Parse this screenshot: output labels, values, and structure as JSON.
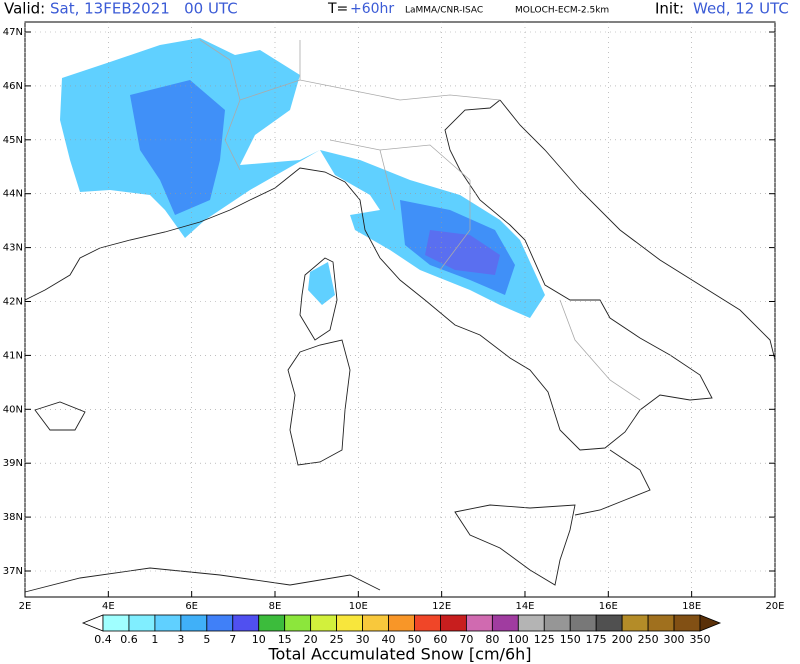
{
  "header": {
    "valid_label": "Valid:",
    "valid_time": "Sat, 13FEB2021   00 UTC",
    "lead_label": "T=",
    "lead_time": "+60hr",
    "source": "LaMMA/CNR-ISAC",
    "model": "MOLOCH-ECM-2.5km",
    "init_label": "Init:",
    "init_time": "Wed, 12 UTC"
  },
  "map": {
    "lat_labels": [
      "47N",
      "46N",
      "45N",
      "44N",
      "43N",
      "42N",
      "41N",
      "40N",
      "39N",
      "38N",
      "37N"
    ],
    "lon_labels": [
      "2E",
      "4E",
      "6E",
      "8E",
      "10E",
      "12E",
      "14E",
      "16E",
      "18E",
      "20E"
    ]
  },
  "colorbar": {
    "title": "Total Accumulated Snow [cm/6h]",
    "labels": [
      "0.4",
      "0.6",
      "1",
      "3",
      "5",
      "7",
      "10",
      "15",
      "20",
      "25",
      "30",
      "40",
      "50",
      "60",
      "70",
      "80",
      "100",
      "125",
      "150",
      "175",
      "200",
      "250",
      "300",
      "350"
    ],
    "colors": [
      "#ffffff",
      "#a0ffff",
      "#80eeff",
      "#60d0ff",
      "#40b0f8",
      "#4080f8",
      "#5050f0",
      "#3cbc3c",
      "#8ce63c",
      "#d2f03c",
      "#f8e63c",
      "#f8c83c",
      "#f89628",
      "#f04628",
      "#c81e1e",
      "#d06ab0",
      "#a03ca0",
      "#b4b4b4",
      "#969696",
      "#787878",
      "#505050",
      "#b48c28",
      "#a0701e",
      "#825014",
      "#5a3008"
    ]
  }
}
